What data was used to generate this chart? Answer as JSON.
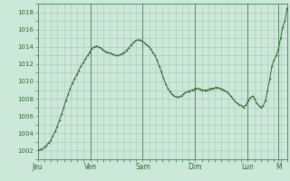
{
  "bg_color": "#cce8d8",
  "line_color": "#2d6a2d",
  "marker_color": "#2d6a2d",
  "grid_color": "#aac8b8",
  "vline_color": "#5a8a6a",
  "axis_label_color": "#2d6a2d",
  "spine_color": "#5a8a6a",
  "ylim": [
    1001.0,
    1019.0
  ],
  "yticks": [
    1002,
    1004,
    1006,
    1008,
    1010,
    1012,
    1014,
    1016,
    1018
  ],
  "xtick_labels": [
    "Jeu",
    "Ven",
    "Sam",
    "Dim",
    "Lun",
    "M"
  ],
  "xtick_positions": [
    0,
    24,
    48,
    72,
    96,
    110
  ],
  "total_hours": 114,
  "pressure_data": [
    1002.0,
    1002.1,
    1002.2,
    1002.4,
    1002.6,
    1002.9,
    1003.2,
    1003.7,
    1004.2,
    1004.8,
    1005.5,
    1006.2,
    1007.0,
    1007.8,
    1008.5,
    1009.2,
    1009.8,
    1010.3,
    1010.8,
    1011.3,
    1011.8,
    1012.2,
    1012.6,
    1013.0,
    1013.4,
    1013.8,
    1014.0,
    1014.1,
    1014.0,
    1013.9,
    1013.7,
    1013.5,
    1013.4,
    1013.3,
    1013.2,
    1013.1,
    1013.0,
    1013.0,
    1013.1,
    1013.2,
    1013.4,
    1013.6,
    1013.9,
    1014.2,
    1014.5,
    1014.7,
    1014.8,
    1014.8,
    1014.7,
    1014.5,
    1014.3,
    1014.1,
    1013.8,
    1013.4,
    1013.0,
    1012.5,
    1011.8,
    1011.1,
    1010.4,
    1009.7,
    1009.2,
    1008.8,
    1008.5,
    1008.3,
    1008.2,
    1008.2,
    1008.3,
    1008.5,
    1008.7,
    1008.8,
    1008.9,
    1009.0,
    1009.1,
    1009.2,
    1009.2,
    1009.1,
    1009.0,
    1009.0,
    1009.0,
    1009.1,
    1009.2,
    1009.2,
    1009.3,
    1009.3,
    1009.2,
    1009.1,
    1009.0,
    1008.8,
    1008.6,
    1008.3,
    1008.0,
    1007.7,
    1007.5,
    1007.3,
    1007.2,
    1007.0,
    1007.3,
    1007.8,
    1008.1,
    1008.3,
    1008.0,
    1007.5,
    1007.2,
    1007.0,
    1007.2,
    1007.8,
    1009.0,
    1010.3,
    1011.8,
    1012.5,
    1013.0,
    1013.8,
    1015.0,
    1016.3,
    1017.0,
    1018.5
  ]
}
